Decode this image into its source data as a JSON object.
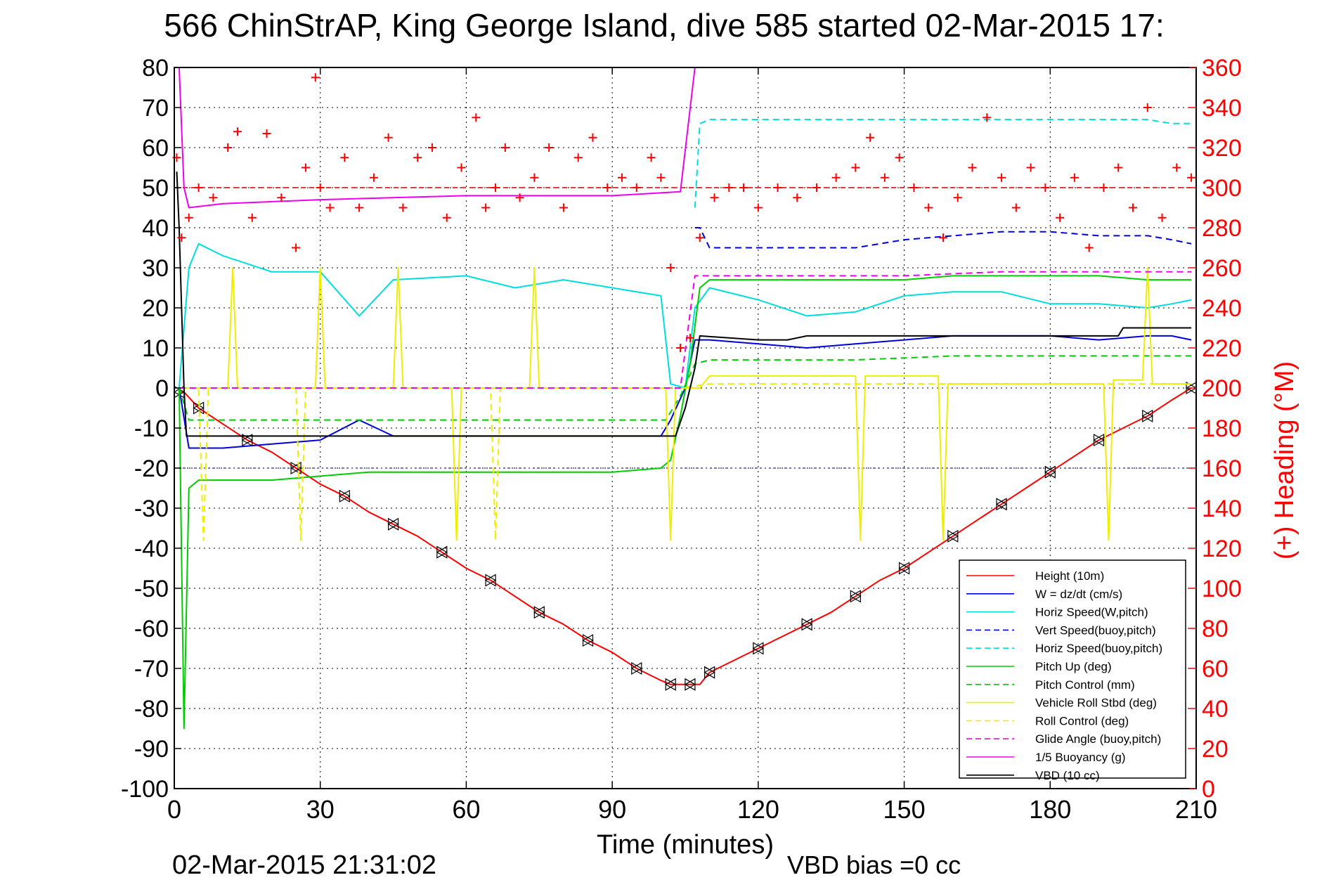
{
  "chart_data": {
    "type": "line",
    "title": "566 ChinStrAP, King George Island, dive 585 started 02-Mar-2015 17:",
    "xlabel": "Time (minutes)",
    "ylabel": "",
    "ylabel_right": "(+) Heading (°M)",
    "xlim": [
      0,
      210
    ],
    "ylim": [
      -100,
      80
    ],
    "ylim_right": [
      0,
      360
    ],
    "xticks": [
      0,
      30,
      60,
      90,
      120,
      150,
      180,
      210
    ],
    "yticks": [
      80,
      70,
      60,
      50,
      40,
      30,
      20,
      10,
      0,
      -10,
      -20,
      -30,
      -40,
      -50,
      -60,
      -70,
      -80,
      -90,
      -100
    ],
    "yticks_right": [
      360,
      340,
      320,
      300,
      280,
      260,
      240,
      220,
      200,
      180,
      160,
      140,
      120,
      100,
      80,
      60,
      40,
      20,
      0
    ],
    "grid": true,
    "legend_position": "bottom-right",
    "footer_left": "02-Mar-2015 21:31:02",
    "footer_right": "VBD bias =0 cc",
    "colors": {
      "heading": "#ff0000",
      "right_axis": "#ff0000"
    },
    "reference_lines": [
      {
        "name": "heading-target",
        "axis": "right",
        "y": 300,
        "color": "#cc0000",
        "style": "dashed"
      },
      {
        "name": "depth-reference",
        "axis": "left",
        "y": -20,
        "color": "#4444cc",
        "style": "dotted"
      }
    ],
    "series": [
      {
        "name": "Height (10m)",
        "color": "#ff0000",
        "style": "solid",
        "x": [
          1,
          2,
          5,
          10,
          15,
          20,
          25,
          30,
          35,
          40,
          45,
          50,
          55,
          60,
          65,
          70,
          75,
          80,
          85,
          90,
          95,
          100,
          102,
          104,
          106,
          108,
          110,
          115,
          120,
          125,
          130,
          135,
          140,
          145,
          150,
          155,
          160,
          165,
          170,
          175,
          180,
          185,
          190,
          195,
          200,
          205,
          209
        ],
        "y": [
          -1,
          -1,
          -5,
          -9,
          -13,
          -16,
          -20,
          -24,
          -27,
          -31,
          -34,
          -37,
          -41,
          -45,
          -48,
          -52,
          -56,
          -59,
          -63,
          -66,
          -70,
          -73,
          -74,
          -74,
          -74,
          -74,
          -71,
          -68,
          -65,
          -62,
          -59,
          -56,
          -52,
          -48,
          -45,
          -41,
          -37,
          -33,
          -29,
          -25,
          -21,
          -17,
          -13,
          -10,
          -7,
          -3,
          0
        ]
      },
      {
        "name": "W = dz/dt (cm/s)",
        "color": "#0000dd",
        "style": "solid",
        "x": [
          1,
          3,
          10,
          20,
          30,
          38,
          45,
          60,
          70,
          80,
          90,
          100,
          102,
          105,
          107,
          110,
          120,
          130,
          140,
          150,
          160,
          170,
          180,
          190,
          200,
          205,
          209
        ],
        "y": [
          0,
          -15,
          -15,
          -14,
          -13,
          -8,
          -12,
          -12,
          -12,
          -12,
          -12,
          -12,
          -8,
          0,
          12,
          12,
          11,
          10,
          11,
          12,
          13,
          13,
          13,
          12,
          13,
          13,
          12
        ]
      },
      {
        "name": "Horiz Speed(W,pitch)",
        "color": "#00dddd",
        "style": "solid",
        "x": [
          1,
          3,
          5,
          10,
          15,
          20,
          30,
          38,
          45,
          60,
          70,
          80,
          90,
          100,
          102,
          105,
          107,
          110,
          120,
          130,
          140,
          150,
          160,
          170,
          180,
          190,
          200,
          205,
          209
        ],
        "y": [
          0,
          30,
          36,
          33,
          31,
          29,
          29,
          18,
          27,
          28,
          25,
          27,
          25,
          23,
          1,
          0,
          20,
          25,
          22,
          18,
          19,
          23,
          24,
          24,
          21,
          21,
          20,
          21,
          22
        ]
      },
      {
        "name": "Vert Speed(buoy,pitch)",
        "color": "#0000dd",
        "style": "dashed",
        "x": [
          107,
          108,
          110,
          120,
          130,
          140,
          150,
          160,
          170,
          180,
          190,
          200,
          205,
          209
        ],
        "y": [
          40,
          40,
          35,
          35,
          35,
          35,
          37,
          38,
          39,
          39,
          38,
          38,
          37,
          36
        ]
      },
      {
        "name": "Horiz Speed(buoy,pitch)",
        "color": "#00dddd",
        "style": "dashed",
        "x": [
          107,
          108,
          110,
          120,
          130,
          140,
          150,
          160,
          170,
          180,
          190,
          200,
          205,
          209
        ],
        "y": [
          45,
          66,
          67,
          67,
          67,
          67,
          67,
          67,
          67,
          67,
          67,
          67,
          66,
          66
        ]
      },
      {
        "name": "Pitch Up (deg)",
        "color": "#00cc00",
        "style": "solid",
        "x": [
          1,
          2,
          3,
          5,
          10,
          20,
          30,
          40,
          50,
          60,
          70,
          80,
          90,
          100,
          102,
          104,
          106,
          108,
          110,
          120,
          130,
          140,
          150,
          160,
          170,
          180,
          190,
          200,
          205,
          209
        ],
        "y": [
          0,
          -85,
          -25,
          -23,
          -23,
          -23,
          -22,
          -21,
          -21,
          -21,
          -21,
          -21,
          -21,
          -20,
          -18,
          -7,
          6,
          25,
          27,
          27,
          27,
          27,
          27,
          28,
          28,
          28,
          28,
          27,
          27,
          27
        ]
      },
      {
        "name": "Pitch Control (mm)",
        "color": "#00cc00",
        "style": "dashed",
        "x": [
          1,
          3,
          10,
          30,
          60,
          90,
          101,
          104,
          107,
          110,
          120,
          140,
          160,
          180,
          200,
          209
        ],
        "y": [
          0,
          -8,
          -8,
          -8,
          -8,
          -8,
          -8,
          -2,
          6,
          7,
          7,
          7,
          8,
          8,
          8,
          8
        ]
      },
      {
        "name": "Vehicle Roll Stbd (deg)",
        "color": "#eeee00",
        "style": "solid",
        "x": [
          1,
          3,
          11,
          12,
          13,
          29,
          30,
          31,
          45,
          46,
          47,
          57,
          58,
          59,
          73,
          74,
          75,
          101,
          102,
          103,
          108,
          110,
          140,
          141,
          142,
          157,
          158,
          159,
          170,
          180,
          191,
          192,
          193,
          199,
          200,
          201,
          205,
          209
        ],
        "y": [
          0,
          0,
          0,
          30,
          0,
          0,
          30,
          0,
          0,
          30,
          0,
          0,
          -38,
          0,
          0,
          30,
          0,
          0,
          -38,
          0,
          0,
          3,
          3,
          -38,
          3,
          3,
          -38,
          1,
          1,
          1,
          1,
          -38,
          2,
          2,
          30,
          1,
          1,
          1
        ]
      },
      {
        "name": "Roll Control (deg)",
        "color": "#eeee00",
        "style": "dashed",
        "x": [
          1,
          5,
          6,
          7,
          20,
          25,
          26,
          27,
          60,
          65,
          66,
          67,
          100,
          104,
          110,
          160,
          170,
          200,
          209
        ],
        "y": [
          0,
          0,
          -38,
          0,
          0,
          0,
          -38,
          0,
          0,
          0,
          -38,
          0,
          0,
          0,
          1,
          1,
          1,
          1,
          1
        ]
      },
      {
        "name": "Glide Angle (buoy,pitch)",
        "color": "#ee00ee",
        "style": "dashed",
        "x": [
          1,
          3,
          30,
          60,
          90,
          104,
          107,
          110,
          130,
          150,
          170,
          190,
          209
        ],
        "y": [
          0,
          0,
          0,
          0,
          0,
          0,
          28,
          28,
          28,
          28,
          29,
          29,
          29
        ]
      },
      {
        "name": "1/5 Buoyancy (g)",
        "color": "#ee00ee",
        "style": "solid",
        "x": [
          1,
          2,
          3,
          10,
          30,
          60,
          90,
          104,
          107
        ],
        "y": [
          80,
          50,
          45,
          46,
          47,
          48,
          48,
          49,
          80
        ]
      },
      {
        "name": "VBD (10 cc)",
        "color": "#000000",
        "style": "solid",
        "x": [
          0.5,
          1,
          2,
          2.5,
          60,
          101,
          103,
          105,
          107,
          108,
          120,
          126,
          130,
          150,
          180,
          194,
          195,
          209
        ],
        "y": [
          54,
          40,
          0,
          -12,
          -12,
          -12,
          -12,
          -5,
          5,
          13,
          12,
          12,
          13,
          13,
          13,
          13,
          15,
          15
        ]
      },
      {
        "name": "(+) Heading (°M)",
        "axis": "right",
        "color": "#ff0000",
        "style": "markers",
        "x": [
          0.5,
          1.5,
          3,
          5,
          8,
          11,
          13,
          16,
          19,
          22,
          25,
          27,
          29,
          30,
          32,
          35,
          38,
          41,
          44,
          47,
          50,
          53,
          56,
          59,
          62,
          64,
          66,
          68,
          71,
          74,
          77,
          80,
          83,
          86,
          89,
          92,
          95,
          98,
          100,
          102,
          104,
          106,
          108,
          111,
          114,
          117,
          120,
          124,
          128,
          132,
          136,
          140,
          143,
          146,
          149,
          152,
          155,
          158,
          161,
          164,
          167,
          170,
          173,
          176,
          179,
          182,
          185,
          188,
          191,
          194,
          197,
          200,
          203,
          206,
          209
        ],
        "y": [
          315,
          275,
          285,
          300,
          295,
          320,
          328,
          285,
          327,
          295,
          270,
          310,
          355,
          300,
          290,
          315,
          290,
          305,
          325,
          290,
          315,
          320,
          285,
          310,
          335,
          290,
          300,
          320,
          295,
          305,
          320,
          290,
          315,
          325,
          300,
          305,
          300,
          315,
          305,
          260,
          220,
          225,
          275,
          295,
          300,
          300,
          290,
          300,
          295,
          300,
          305,
          310,
          325,
          305,
          315,
          300,
          290,
          275,
          295,
          310,
          335,
          305,
          290,
          310,
          300,
          285,
          305,
          270,
          300,
          310,
          290,
          340,
          285,
          310,
          305
        ]
      }
    ]
  }
}
